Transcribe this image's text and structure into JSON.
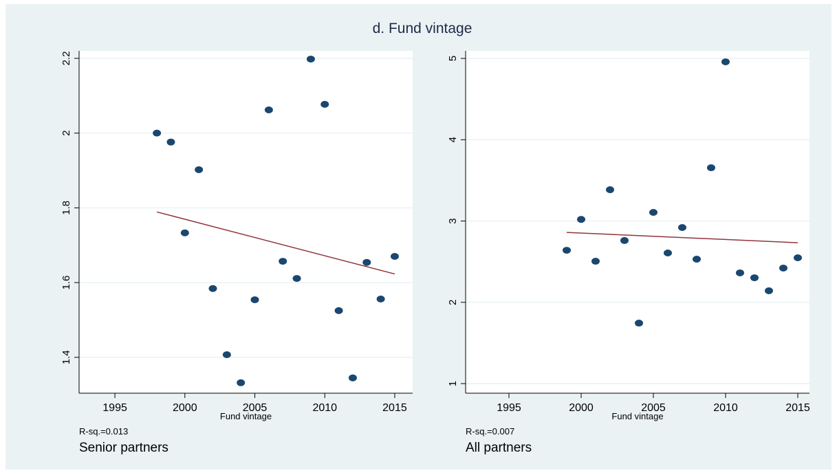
{
  "title": "d. Fund vintage",
  "chart_data": [
    {
      "type": "scatter",
      "subtitle": "Senior partners",
      "note": "R-sq.=0.013",
      "xlabel": "Fund vintage",
      "x": [
        1998,
        1999,
        2000,
        2001,
        2002,
        2003,
        2004,
        2005,
        2006,
        2007,
        2008,
        2009,
        2010,
        2011,
        2012,
        2013,
        2014,
        2015
      ],
      "values": [
        2.0,
        1.976,
        1.733,
        1.902,
        1.584,
        1.407,
        1.332,
        1.554,
        2.062,
        1.657,
        1.611,
        2.198,
        2.077,
        1.525,
        1.345,
        1.654,
        1.556,
        1.67
      ],
      "color": "#1a476f",
      "fit": {
        "x": [
          1998,
          2015
        ],
        "values": [
          1.789,
          1.623
        ],
        "color": "#90353b"
      },
      "xlim": [
        1992.44,
        2016.28
      ],
      "xticks": [
        1995,
        2000,
        2005,
        2010,
        2015
      ],
      "ylim": [
        1.304,
        2.22
      ],
      "yticks": [
        1.4,
        1.6,
        1.8,
        2,
        2.2
      ],
      "grid": true
    },
    {
      "type": "scatter",
      "subtitle": "All partners",
      "note": "R-sq.=0.007",
      "xlabel": "Fund vintage",
      "x": [
        1999,
        2000,
        2001,
        2002,
        2003,
        2004,
        2005,
        2006,
        2007,
        2008,
        2009,
        2010,
        2011,
        2012,
        2013,
        2014,
        2015
      ],
      "values": [
        2.64,
        3.02,
        2.505,
        3.385,
        2.76,
        1.744,
        3.106,
        2.607,
        2.92,
        2.531,
        3.655,
        4.958,
        2.362,
        2.302,
        2.142,
        2.421,
        2.548
      ],
      "color": "#1a476f",
      "fit": {
        "x": [
          1999,
          2015
        ],
        "values": [
          2.86,
          2.733
        ],
        "color": "#90353b"
      },
      "xlim": [
        1992,
        2015.81
      ],
      "xticks": [
        1995,
        2000,
        2005,
        2010,
        2015
      ],
      "ylim": [
        0.882,
        5.093
      ],
      "yticks": [
        1,
        2,
        3,
        4,
        5
      ],
      "grid": true
    }
  ]
}
